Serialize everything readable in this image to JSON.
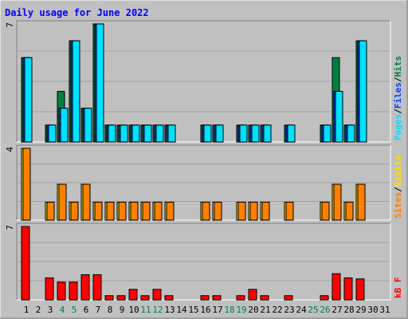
{
  "chart_data": [
    {
      "type": "bar",
      "title": "Daily usage for June 2022",
      "categories": [
        "1",
        "2",
        "3",
        "4",
        "5",
        "6",
        "7",
        "8",
        "9",
        "10",
        "11",
        "12",
        "13",
        "14",
        "15",
        "16",
        "17",
        "18",
        "19",
        "20",
        "21",
        "22",
        "23",
        "24",
        "25",
        "26",
        "27",
        "28",
        "29",
        "30",
        "31"
      ],
      "weekend_days": [
        "4",
        "5",
        "11",
        "12",
        "18",
        "19",
        "25",
        "26"
      ],
      "ymax_label": "7",
      "legend": [
        "Pages",
        "Files",
        "Hits"
      ],
      "series": [
        {
          "name": "Hits",
          "color": "#008040",
          "values": [
            5,
            0,
            1,
            3,
            6,
            2,
            7,
            1,
            1,
            1,
            1,
            1,
            1,
            0,
            0,
            1,
            1,
            0,
            1,
            1,
            1,
            0,
            1,
            0,
            0,
            1,
            5,
            1,
            6,
            0,
            0
          ]
        },
        {
          "name": "Files",
          "color": "#0040ff",
          "values": [
            5,
            0,
            1,
            2,
            6,
            2,
            7,
            1,
            1,
            1,
            1,
            1,
            1,
            0,
            0,
            1,
            1,
            0,
            1,
            1,
            1,
            0,
            1,
            0,
            0,
            1,
            3,
            1,
            6,
            0,
            0
          ]
        },
        {
          "name": "Pages",
          "color": "#00e0ff",
          "values": [
            5,
            0,
            1,
            2,
            6,
            2,
            7,
            1,
            1,
            1,
            1,
            1,
            1,
            0,
            0,
            1,
            1,
            0,
            1,
            1,
            1,
            0,
            1,
            0,
            0,
            1,
            3,
            1,
            6,
            0,
            0
          ]
        }
      ]
    },
    {
      "type": "bar",
      "ymax_label": "4",
      "legend": [
        "Sites",
        "Visits"
      ],
      "series": [
        {
          "name": "Visits",
          "color": "#ffe000",
          "values": [
            4,
            0,
            1,
            2,
            1,
            2,
            1,
            1,
            1,
            1,
            1,
            1,
            1,
            0,
            0,
            1,
            1,
            0,
            1,
            1,
            1,
            0,
            1,
            0,
            0,
            1,
            2,
            1,
            2,
            0,
            0
          ]
        },
        {
          "name": "Sites",
          "color": "#ff8000",
          "values": [
            4,
            0,
            1,
            2,
            1,
            2,
            1,
            1,
            1,
            1,
            1,
            1,
            1,
            0,
            0,
            1,
            1,
            0,
            1,
            1,
            1,
            0,
            1,
            0,
            0,
            1,
            2,
            1,
            2,
            0,
            0
          ]
        }
      ]
    },
    {
      "type": "bar",
      "ymax_label": "7",
      "legend": [
        "kB F"
      ],
      "series": [
        {
          "name": "kB F",
          "color": "#ff0000",
          "values": [
            7,
            0,
            2.1,
            1.7,
            1.7,
            2.4,
            2.4,
            0.4,
            0.4,
            1.0,
            0.4,
            1.0,
            0.4,
            0,
            0,
            0.4,
            0.4,
            0,
            0.4,
            1.0,
            0.4,
            0,
            0.4,
            0,
            0,
            0.4,
            2.5,
            2.1,
            2.0,
            0,
            0
          ]
        }
      ]
    }
  ]
}
